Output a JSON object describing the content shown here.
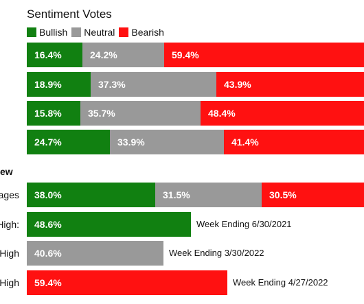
{
  "header": {
    "title": "Sentiment Votes",
    "legend": [
      {
        "label": "Bullish",
        "color": "#118011"
      },
      {
        "label": "Neutral",
        "color": "#999999"
      },
      {
        "label": "Bearish",
        "color": "#ff1111"
      }
    ]
  },
  "chart_data": [
    {
      "type": "bar",
      "title": "Sentiment Votes",
      "stacked": true,
      "orientation": "horizontal",
      "series_names": [
        "Bullish",
        "Neutral",
        "Bearish"
      ],
      "series_colors": [
        "#118011",
        "#999999",
        "#ff1111"
      ],
      "rows": [
        {
          "values": [
            16.4,
            24.2,
            59.4
          ],
          "labels": [
            "16.4%",
            "24.2%",
            "59.4%"
          ]
        },
        {
          "values": [
            18.9,
            37.3,
            43.9
          ],
          "labels": [
            "18.9%",
            "37.3%",
            "43.9%"
          ]
        },
        {
          "values": [
            15.8,
            35.7,
            48.4
          ],
          "labels": [
            "15.8%",
            "35.7%",
            "48.4%"
          ]
        },
        {
          "values": [
            24.7,
            33.9,
            41.4
          ],
          "labels": [
            "24.7%",
            "33.9%",
            "41.4%"
          ]
        }
      ]
    },
    {
      "type": "bar",
      "title": "ew",
      "orientation": "horizontal",
      "rows": [
        {
          "label": "ages",
          "stacked": true,
          "values": [
            38.0,
            31.5,
            30.5
          ],
          "labels": [
            "38.0%",
            "31.5%",
            "30.5%"
          ],
          "colors": [
            "#118011",
            "#999999",
            "#ff1111"
          ]
        },
        {
          "label": "High:",
          "values": [
            48.6
          ],
          "labels": [
            "48.6%"
          ],
          "colors": [
            "#118011"
          ],
          "annotation": "Week Ending 6/30/2021"
        },
        {
          "label": "High",
          "values": [
            40.6
          ],
          "labels": [
            "40.6%"
          ],
          "colors": [
            "#999999"
          ],
          "annotation": "Week Ending 3/30/2022"
        },
        {
          "label": "High",
          "values": [
            59.4
          ],
          "labels": [
            "59.4%"
          ],
          "colors": [
            "#ff1111"
          ],
          "annotation": "Week Ending 4/27/2022"
        }
      ]
    }
  ]
}
